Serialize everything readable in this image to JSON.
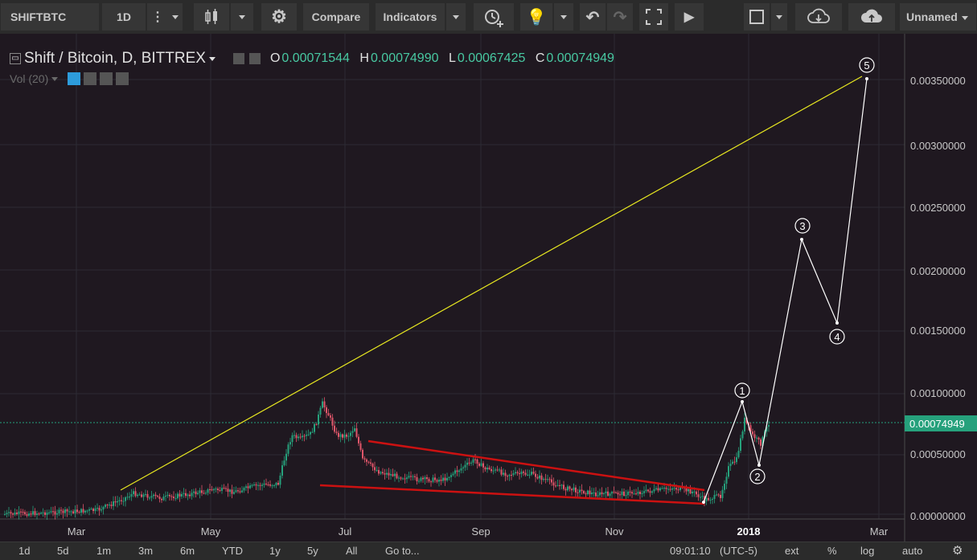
{
  "toolbar": {
    "symbol": "SHIFTBTC",
    "interval": "1D",
    "compare_label": "Compare",
    "indicators_label": "Indicators",
    "layout_name": "Unnamed"
  },
  "legend": {
    "title": "Shift / Bitcoin, D, BITTREX",
    "o_label": "O",
    "o_value": "0.00071544",
    "h_label": "H",
    "h_value": "0.00074990",
    "l_label": "L",
    "l_value": "0.00067425",
    "c_label": "C",
    "c_value": "0.00074949",
    "volume_label": "Vol (20)"
  },
  "price_axis": {
    "labels": [
      "0.00350000",
      "0.00300000",
      "0.00250000",
      "0.00200000",
      "0.00150000",
      "0.00100000",
      "0.00050000",
      "0.00000000"
    ],
    "current_price": "0.00074949"
  },
  "time_axis": {
    "labels": [
      "Mar",
      "May",
      "Jul",
      "Sep",
      "Nov",
      "2018",
      "Mar"
    ]
  },
  "wave_labels": [
    "1",
    "2",
    "3",
    "4",
    "5"
  ],
  "bottom_bar": {
    "ranges": [
      "1d",
      "5d",
      "1m",
      "3m",
      "6m",
      "YTD",
      "1y",
      "5y",
      "All"
    ],
    "goto_label": "Go to...",
    "clock": "09:01:10",
    "timezone": "(UTC-5)",
    "ext_label": "ext",
    "percent_label": "%",
    "log_label": "log",
    "auto_label": "auto"
  },
  "colors": {
    "up": "#26a17c",
    "down": "#e0566a",
    "trendline": "#e8e820",
    "wedge": "#cc1111",
    "wave_path": "#ffffff"
  }
}
